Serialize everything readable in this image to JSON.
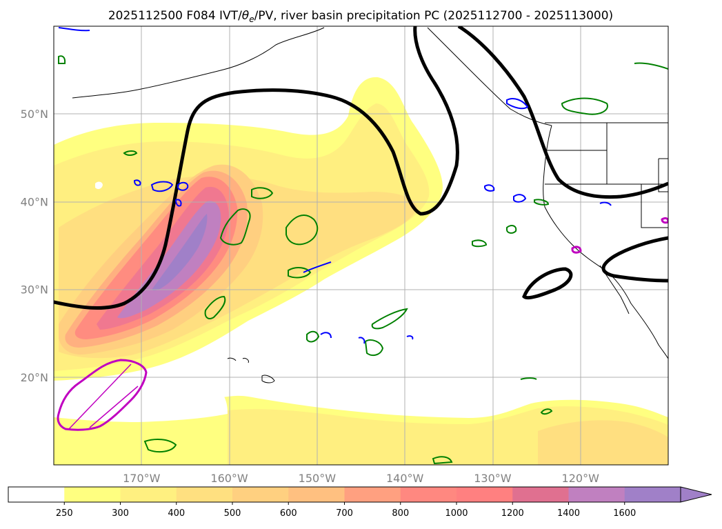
{
  "chart_data": {
    "type": "heatmap",
    "title": "2025112500 F084 IVT/θe/PV, river basin precipitation PC (2025112700 - 2025113000)",
    "title_parts": {
      "prefix": "2025112500 F084 IVT/",
      "theta": "θ",
      "theta_sub": "e",
      "suffix": "/PV, river basin precipitation PC (2025112700 - 2025113000)"
    },
    "projection": "plate carree",
    "lon_range": [
      -180,
      -110
    ],
    "lat_range": [
      10,
      60
    ],
    "lat_ticks": [
      {
        "value": 20,
        "label": "20°N"
      },
      {
        "value": 30,
        "label": "30°N"
      },
      {
        "value": 40,
        "label": "40°N"
      },
      {
        "value": 50,
        "label": "50°N"
      }
    ],
    "lon_ticks": [
      {
        "value": -170,
        "label": "170°W"
      },
      {
        "value": -160,
        "label": "160°W"
      },
      {
        "value": -150,
        "label": "150°W"
      },
      {
        "value": -140,
        "label": "140°W"
      },
      {
        "value": -130,
        "label": "130°W"
      },
      {
        "value": -120,
        "label": "120°W"
      }
    ],
    "grid": true,
    "colorbar": {
      "levels": [
        "250",
        "300",
        "400",
        "500",
        "600",
        "700",
        "800",
        "1000",
        "1200",
        "1400",
        "1600"
      ],
      "colors": [
        "#ffffff",
        "#ffff80",
        "#fff080",
        "#ffe080",
        "#ffd080",
        "#ffc080",
        "#ffa080",
        "#ff8880",
        "#ff8080",
        "#e07090",
        "#c080c0",
        "#a080c8"
      ],
      "extend": "max"
    },
    "ivt_field": {
      "units": "IVT",
      "features": [
        {
          "name": "main-plume",
          "max_value": 1600,
          "core_lon": -166,
          "core_lat": 36
        },
        {
          "name": "northeast-arm",
          "max_value": 300,
          "core_lon": -146,
          "core_lat": 48
        },
        {
          "name": "southern-band",
          "max_value": 400,
          "core_lon": -125,
          "core_lat": 14
        }
      ]
    },
    "series": [
      {
        "name": "theta-e contour",
        "color": "#000000"
      },
      {
        "name": "PV contour",
        "color": "#008000"
      },
      {
        "name": "PV contour (negative)",
        "color": "#0000ff"
      },
      {
        "name": "river basin precipitation region",
        "color": "#c000c0"
      }
    ]
  }
}
